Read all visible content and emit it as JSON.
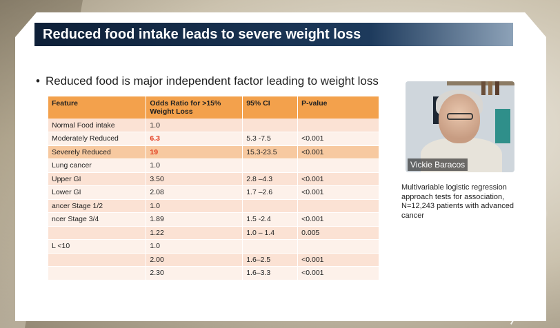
{
  "slide": {
    "title": "Reduced food intake leads to severe weight loss",
    "bullet": "Reduced food is major independent factor leading to weight loss",
    "table": {
      "headers": [
        "Feature",
        "Odds Ratio for >15% Weight Loss",
        "95% CI",
        "P-value"
      ],
      "rows": [
        {
          "feature": "Normal Food intake",
          "or": "1.0",
          "ci": "",
          "p": ""
        },
        {
          "feature": "Moderately Reduced",
          "or": "6.3",
          "ci": "5.3 -7.5",
          "p": "<0.001"
        },
        {
          "feature": "Severely Reduced",
          "or": "19",
          "ci": "15.3-23.5",
          "p": "<0.001"
        },
        {
          "feature": "Lung cancer",
          "or": "1.0",
          "ci": "",
          "p": ""
        },
        {
          "feature": "Upper GI",
          "or": "3.50",
          "ci": "2.8 –4.3",
          "p": "<0.001"
        },
        {
          "feature": "Lower GI",
          "or": "2.08",
          "ci": "1.7 –2.6",
          "p": "<0.001"
        },
        {
          "feature": "ancer Stage 1/2",
          "or": "1.0",
          "ci": "",
          "p": ""
        },
        {
          "feature": "ncer Stage 3/4",
          "or": "1.89",
          "ci": "1.5 -2.4",
          "p": "<0.001"
        },
        {
          "feature": "",
          "or": "1.22",
          "ci": "1.0 – 1.4",
          "p": "0.005"
        },
        {
          "feature": "L <10",
          "or": "1.0",
          "ci": "",
          "p": ""
        },
        {
          "feature": "",
          "or": "2.00",
          "ci": "1.6–2.5",
          "p": "<0.001"
        },
        {
          "feature": "",
          "or": "2.30",
          "ci": "1.6–3.3",
          "p": "<0.001"
        }
      ]
    },
    "note": "Multivariable logistic regression approach tests for association, N=12,243 patients with advanced cancer"
  },
  "video": {
    "speaker_name": "Vickie Baracos"
  },
  "colors": {
    "title_bar": "#0e2038",
    "table_header": "#f3a14c",
    "highlight_row": "#f7c9a0",
    "emphasis_text": "#e23a1c"
  }
}
